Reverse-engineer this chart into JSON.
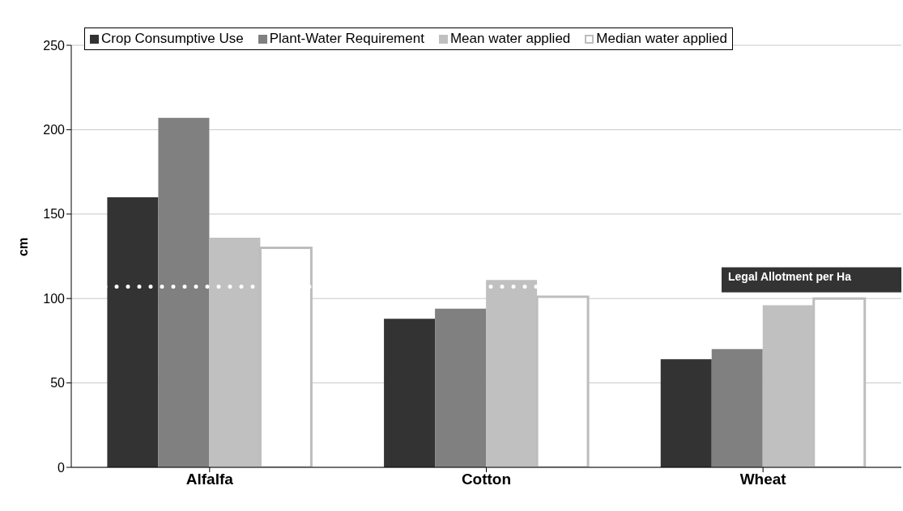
{
  "chart_data": {
    "type": "bar",
    "ylabel": "cm",
    "categories": [
      "Alfalfa",
      "Cotton",
      "Wheat"
    ],
    "series": [
      {
        "name": "Crop Consumptive Use",
        "color": "#333333",
        "values": [
          160,
          88,
          64
        ]
      },
      {
        "name": "Plant-Water Requirement",
        "color": "#808080",
        "values": [
          207,
          94,
          70
        ]
      },
      {
        "name": "Mean water applied",
        "color": "#c0c0c0",
        "values": [
          136,
          111,
          96
        ]
      },
      {
        "name": "Median water applied",
        "color": "#ffffff",
        "values": [
          130,
          101,
          100
        ]
      }
    ],
    "ylim": [
      0,
      250
    ],
    "yticks": [
      0,
      50,
      100,
      150,
      200,
      250
    ],
    "grid": "y",
    "legend": "top",
    "ref_lines": [
      {
        "axis": "y",
        "value": 107,
        "label": "Legal Allotment per Ha",
        "color": "#ffffff",
        "line_style": "dotted"
      }
    ]
  }
}
